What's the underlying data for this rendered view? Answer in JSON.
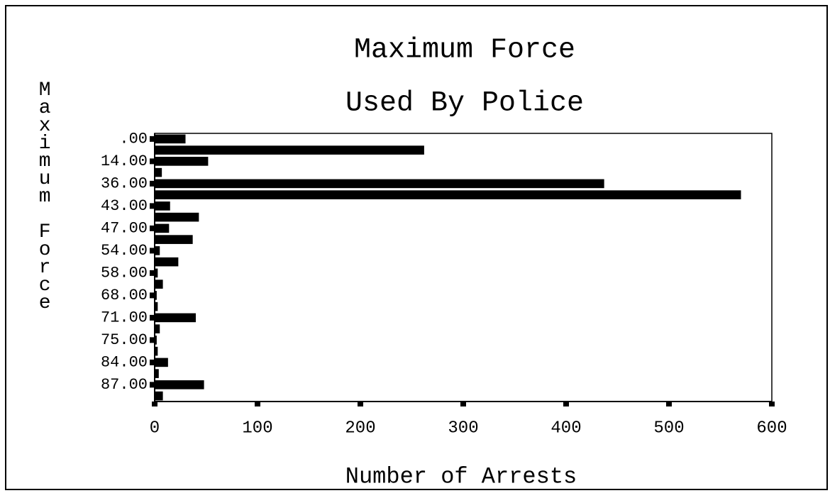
{
  "chart_data": {
    "type": "barh",
    "title": [
      "Maximum Force",
      "Used By Police"
    ],
    "x_label": "Number of Arrests",
    "y_label": "Maximum Force",
    "categories": [
      ".00",
      null,
      "14.00",
      null,
      "36.00",
      null,
      "43.00",
      null,
      "47.00",
      null,
      "54.00",
      null,
      "58.00",
      null,
      "68.00",
      null,
      "71.00",
      null,
      "75.00",
      null,
      "84.00",
      null,
      "87.00",
      null
    ],
    "values": [
      30,
      262,
      52,
      7,
      437,
      570,
      15,
      43,
      14,
      37,
      5,
      23,
      3,
      8,
      2,
      3,
      40,
      5,
      2,
      3,
      13,
      4,
      48,
      8
    ],
    "color": "#000000",
    "xlim": [
      0,
      600
    ],
    "xticks": [
      0,
      100,
      200,
      300,
      400,
      500,
      600
    ]
  }
}
